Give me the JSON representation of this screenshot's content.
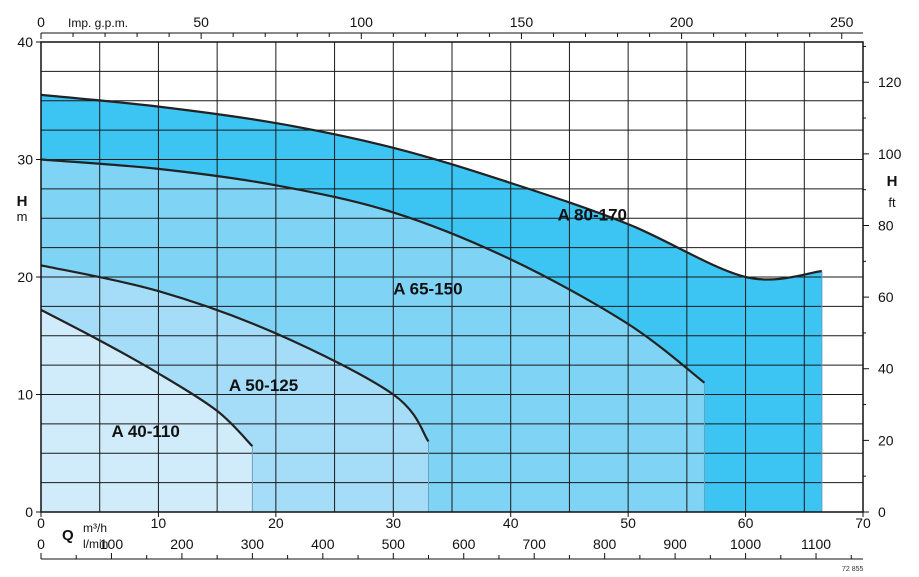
{
  "chart_data": {
    "type": "area",
    "title": "",
    "x_axes": {
      "bottom_primary": {
        "unit_label": "m³/h",
        "min": 0,
        "max": 70,
        "ticks": [
          0,
          10,
          20,
          30,
          40,
          50,
          60,
          70
        ]
      },
      "bottom_secondary": {
        "unit_label": "l/min",
        "ticks": [
          0,
          100,
          200,
          300,
          400,
          500,
          600,
          700,
          800,
          900,
          1000,
          1100
        ]
      },
      "top": {
        "unit_label": "Imp. g.p.m.",
        "ticks": [
          0,
          50,
          100,
          150,
          200,
          250
        ]
      }
    },
    "y_axes": {
      "left": {
        "label": "H",
        "unit": "m",
        "min": 0,
        "max": 40,
        "ticks": [
          0,
          10,
          20,
          30,
          40
        ]
      },
      "right": {
        "label": "H",
        "unit": "ft",
        "ticks": [
          0,
          20,
          40,
          60,
          80,
          100,
          120
        ]
      }
    },
    "q_label": "Q",
    "grid": true,
    "series": [
      {
        "name": "A 80-170",
        "color": "#3cc4f2",
        "x": [
          0,
          10,
          20,
          30,
          40,
          50,
          60,
          66.5
        ],
        "y": [
          35.5,
          34.5,
          33.1,
          31.0,
          28.0,
          24.5,
          20.0,
          20.5
        ]
      },
      {
        "name": "A 65-150",
        "color": "#7fd3f5",
        "x": [
          0,
          10,
          20,
          30,
          40,
          50,
          56.5
        ],
        "y": [
          30.0,
          29.2,
          27.8,
          25.5,
          21.5,
          16.0,
          11.0
        ]
      },
      {
        "name": "A 50-125",
        "color": "#a5ddf8",
        "x": [
          0,
          10,
          20,
          30,
          33
        ],
        "y": [
          21.0,
          18.8,
          15.2,
          10.0,
          6.0
        ]
      },
      {
        "name": "A 40-110",
        "color": "#d0ecfb",
        "x": [
          0,
          5,
          10,
          15,
          18
        ],
        "y": [
          17.2,
          14.6,
          11.8,
          8.6,
          5.6
        ]
      }
    ],
    "series_label_positions_data_units": {
      "A 80-170": [
        44,
        24.8
      ],
      "A 65-150": [
        30,
        18.5
      ],
      "A 50-125": [
        16,
        10.3
      ],
      "A 40-110": [
        6,
        6.4
      ]
    },
    "footnote": "72 855"
  }
}
